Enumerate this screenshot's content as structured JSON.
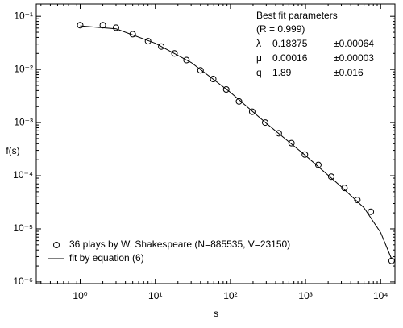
{
  "chart_data": {
    "type": "scatter",
    "xlabel": "s",
    "ylabel": "f(s)",
    "xscale": "log",
    "yscale": "log",
    "xlim": [
      0.26,
      15500
    ],
    "ylim": [
      9.3e-07,
      0.17
    ],
    "xticks": [
      {
        "value": 1,
        "label": "10⁰"
      },
      {
        "value": 10,
        "label": "10¹"
      },
      {
        "value": 100,
        "label": "10²"
      },
      {
        "value": 1000,
        "label": "10³"
      },
      {
        "value": 10000,
        "label": "10⁴"
      }
    ],
    "yticks": [
      {
        "value": 1e-06,
        "label": "10⁻⁶"
      },
      {
        "value": 1e-05,
        "label": "10⁻⁵"
      },
      {
        "value": 0.0001,
        "label": "10⁻⁴"
      },
      {
        "value": 0.001,
        "label": "10⁻³"
      },
      {
        "value": 0.01,
        "label": "10⁻²"
      },
      {
        "value": 0.1,
        "label": "10⁻¹"
      }
    ],
    "legend_position": "lower left",
    "series": [
      {
        "name": "36 plays by W. Shakespeare (N=885535, V=23150)",
        "type": "scatter",
        "marker": "open-circle",
        "color": "#000000",
        "x": [
          1,
          2,
          3,
          5,
          8,
          12,
          18,
          26,
          40,
          59,
          88,
          130,
          195,
          290,
          440,
          650,
          980,
          1480,
          2200,
          3300,
          4900,
          7400,
          14000
        ],
        "values": [
          0.068,
          0.068,
          0.061,
          0.046,
          0.034,
          0.027,
          0.02,
          0.015,
          0.0096,
          0.0066,
          0.0042,
          0.0025,
          0.0016,
          0.001,
          0.00063,
          0.00041,
          0.00025,
          0.00016,
          9.6e-05,
          5.9e-05,
          3.5e-05,
          2.1e-05,
          2.5e-06
        ]
      },
      {
        "name": "fit by equation (6)",
        "type": "line",
        "color": "#000000",
        "x": [
          1,
          3,
          10,
          30,
          100,
          300,
          1000,
          3000,
          6000,
          10000,
          14000
        ],
        "values": [
          0.066,
          0.058,
          0.031,
          0.0135,
          0.0037,
          0.00097,
          0.00024,
          6.2e-05,
          2.5e-05,
          8.5e-06,
          2.7e-06
        ]
      }
    ],
    "annotation": {
      "title": "Best fit parameters",
      "r_line": "(R  = 0.999)",
      "rows": [
        [
          "λ",
          "0.18375",
          "±0.00064"
        ],
        [
          "μ",
          "0.00016",
          "±0.00003"
        ],
        [
          "q",
          "1.89",
          "±0.016"
        ]
      ]
    }
  }
}
